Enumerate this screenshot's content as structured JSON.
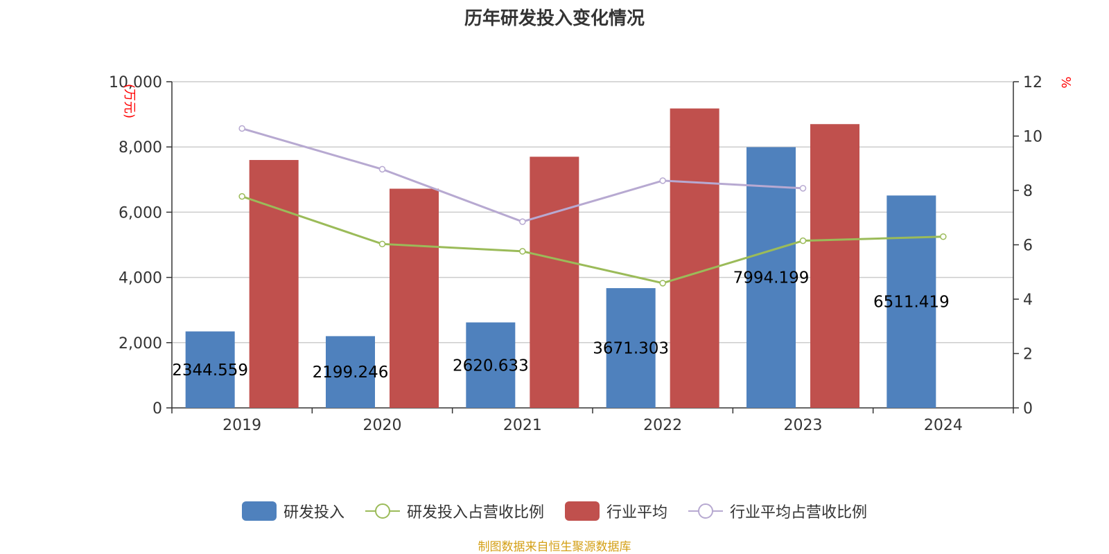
{
  "title": "历年研发投入变化情况",
  "source_note": "制图数据来自恒生聚源数据库",
  "colors": {
    "rd_bar": "#4f81bd",
    "industry_bar": "#c0504d",
    "rd_ratio_line": "#9bbb59",
    "industry_ratio_line": "#b7a9d1",
    "axis_unit": "#ff0000",
    "grid": "#cccccc",
    "text": "#333333"
  },
  "chart_data": {
    "type": "bar",
    "categories": [
      "2019",
      "2020",
      "2021",
      "2022",
      "2023",
      "2024"
    ],
    "y_left": {
      "label": "(万元)",
      "min": 0,
      "max": 10000,
      "ticks": [
        "0",
        "2,000",
        "4,000",
        "6,000",
        "8,000",
        "10,000"
      ]
    },
    "y_right": {
      "label": "%",
      "min": 0,
      "max": 12,
      "ticks": [
        "0",
        "2",
        "4",
        "6",
        "8",
        "10",
        "12"
      ]
    },
    "grid": true,
    "legend_position": "bottom",
    "series": [
      {
        "name": "研发投入",
        "kind": "bar",
        "axis": "left",
        "values": [
          2344.559,
          2199.246,
          2620.633,
          3671.303,
          7994.199,
          6511.419
        ],
        "labels": [
          "2344.559",
          "2199.246",
          "2620.633",
          "3671.303",
          "7994.199",
          "6511.419"
        ]
      },
      {
        "name": "研发投入占营收比例",
        "kind": "line",
        "axis": "right",
        "values": [
          7.78,
          6.03,
          5.76,
          4.59,
          6.15,
          6.3
        ]
      },
      {
        "name": "行业平均",
        "kind": "bar",
        "axis": "left",
        "values": [
          7600,
          6720,
          7700,
          9180,
          8700,
          null
        ]
      },
      {
        "name": "行业平均占营收比例",
        "kind": "line",
        "axis": "right",
        "values": [
          10.28,
          8.78,
          6.85,
          8.36,
          8.08,
          null
        ]
      }
    ]
  }
}
